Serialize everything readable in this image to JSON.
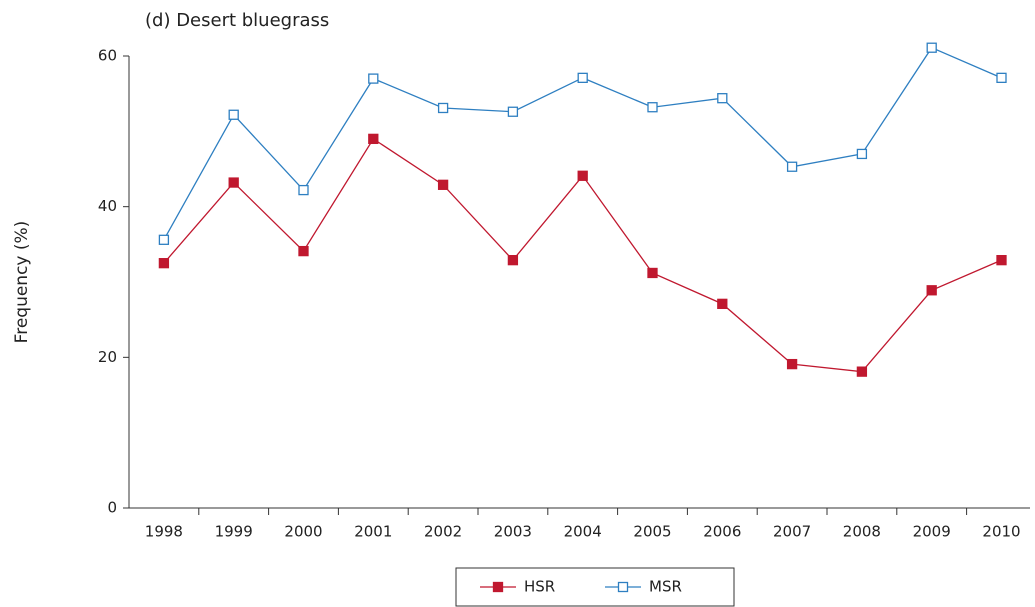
{
  "chart_data": {
    "type": "line",
    "title": "(d) Desert bluegrass",
    "y_label": "Frequency (%)",
    "categories": [
      "1998",
      "1999",
      "2000",
      "2001",
      "2002",
      "2003",
      "2004",
      "2005",
      "2006",
      "2007",
      "2008",
      "2009",
      "2010"
    ],
    "series": [
      {
        "name": "HSR",
        "color": "#c0182f",
        "marker": "filled-square",
        "values": [
          32.5,
          43.2,
          34.1,
          49.0,
          42.9,
          32.9,
          44.1,
          31.2,
          27.1,
          19.1,
          18.1,
          28.9,
          32.9
        ]
      },
      {
        "name": "MSR",
        "color": "#2e7fc1",
        "marker": "open-square",
        "values": [
          35.6,
          52.2,
          42.2,
          57.0,
          53.1,
          52.6,
          57.1,
          53.2,
          54.4,
          45.3,
          47.0,
          61.1,
          57.1
        ]
      }
    ],
    "ylim": [
      0,
      60
    ],
    "yticks": [
      0,
      20,
      40,
      60
    ],
    "grid": false,
    "legend": "bottom"
  }
}
